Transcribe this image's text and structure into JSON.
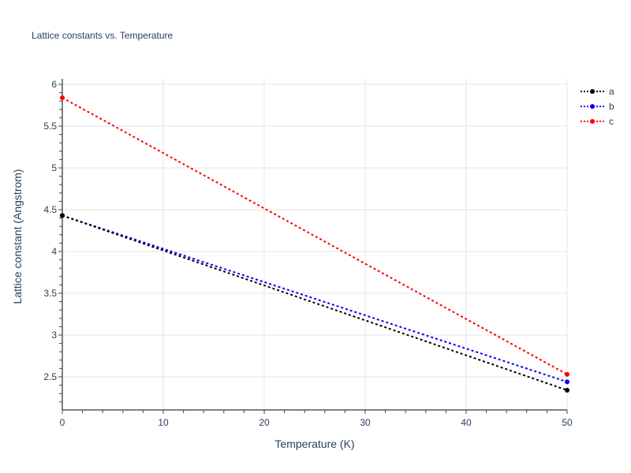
{
  "chart": {
    "title": "Lattice constants vs. Temperature",
    "xlabel": "Temperature (K)",
    "ylabel": "Lattice constant (Angstrom)"
  },
  "legend": {
    "items": [
      {
        "label": "a",
        "color": "#000000"
      },
      {
        "label": "b",
        "color": "#0000ff"
      },
      {
        "label": "c",
        "color": "#ff0000"
      }
    ]
  },
  "chart_data": {
    "type": "line",
    "title": "Lattice constants vs. Temperature",
    "xlabel": "Temperature (K)",
    "ylabel": "Lattice constant (Angstrom)",
    "x": [
      0,
      50
    ],
    "series": [
      {
        "name": "a",
        "color": "#000000",
        "values": [
          4.43,
          2.34
        ],
        "style": "dotted",
        "markers": true
      },
      {
        "name": "b",
        "color": "#0000ff",
        "values": [
          4.43,
          2.44
        ],
        "style": "dotted",
        "markers": true
      },
      {
        "name": "c",
        "color": "#ff0000",
        "values": [
          5.84,
          2.53
        ],
        "style": "dotted",
        "markers": true
      }
    ],
    "xlim": [
      0,
      50
    ],
    "ylim": [
      2.1,
      6.05
    ],
    "xticks": [
      0,
      10,
      20,
      30,
      40,
      50
    ],
    "yticks": [
      2.5,
      3,
      3.5,
      4,
      4.5,
      5,
      5.5,
      6
    ],
    "ytick_labels": [
      "2.5",
      "3",
      "3.5",
      "4",
      "4.5",
      "5",
      "5.5",
      "6"
    ],
    "grid": true,
    "legend_position": "top-right outside"
  }
}
